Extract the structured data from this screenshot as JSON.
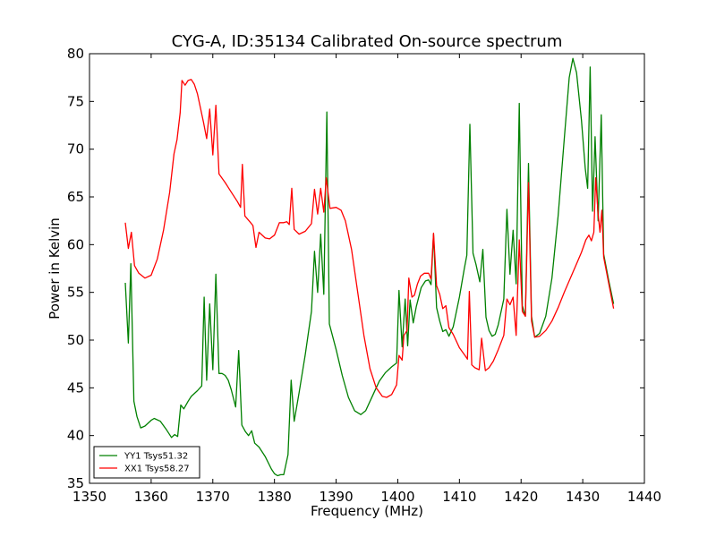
{
  "chart_data": {
    "type": "line",
    "title": "CYG-A, ID:35134 Calibrated On-source spectrum",
    "xlabel": "Frequency (MHz)",
    "ylabel": "Power in Kelvin",
    "xlim": [
      1350,
      1440
    ],
    "ylim": [
      35,
      80
    ],
    "xticks": [
      "1350",
      "1360",
      "1370",
      "1380",
      "1390",
      "1400",
      "1410",
      "1420",
      "1430",
      "1440"
    ],
    "yticks": [
      "35",
      "40",
      "45",
      "50",
      "55",
      "60",
      "65",
      "70",
      "75",
      "80"
    ],
    "grid": false,
    "legend_position": "lower-left",
    "series": [
      {
        "name": "YY1 Tsys51.32",
        "color": "#008000",
        "points": [
          [
            1355.8,
            56.0
          ],
          [
            1356.3,
            49.7
          ],
          [
            1356.7,
            58.0
          ],
          [
            1357.2,
            43.6
          ],
          [
            1357.7,
            42.0
          ],
          [
            1358.3,
            40.8
          ],
          [
            1359.0,
            41.0
          ],
          [
            1360.0,
            41.6
          ],
          [
            1360.5,
            41.8
          ],
          [
            1361.5,
            41.5
          ],
          [
            1362.5,
            40.6
          ],
          [
            1363.3,
            39.8
          ],
          [
            1363.8,
            40.1
          ],
          [
            1364.3,
            39.9
          ],
          [
            1364.8,
            43.2
          ],
          [
            1365.3,
            42.8
          ],
          [
            1366.0,
            43.6
          ],
          [
            1366.5,
            44.1
          ],
          [
            1367.5,
            44.7
          ],
          [
            1368.2,
            45.2
          ],
          [
            1368.6,
            54.5
          ],
          [
            1369.0,
            45.8
          ],
          [
            1369.5,
            53.8
          ],
          [
            1370.0,
            46.9
          ],
          [
            1370.5,
            56.9
          ],
          [
            1371.0,
            46.5
          ],
          [
            1371.5,
            46.5
          ],
          [
            1372.0,
            46.3
          ],
          [
            1372.5,
            45.8
          ],
          [
            1373.0,
            44.8
          ],
          [
            1373.7,
            43.0
          ],
          [
            1374.2,
            48.9
          ],
          [
            1374.7,
            41.1
          ],
          [
            1375.3,
            40.4
          ],
          [
            1375.8,
            40.0
          ],
          [
            1376.3,
            40.5
          ],
          [
            1376.8,
            39.2
          ],
          [
            1377.5,
            38.8
          ],
          [
            1378.5,
            37.8
          ],
          [
            1379.5,
            36.5
          ],
          [
            1380.0,
            36.0
          ],
          [
            1380.5,
            35.8
          ],
          [
            1381.0,
            35.9
          ],
          [
            1381.5,
            35.9
          ],
          [
            1382.2,
            38.0
          ],
          [
            1382.7,
            45.8
          ],
          [
            1383.2,
            41.5
          ],
          [
            1384.0,
            44.5
          ],
          [
            1385.0,
            48.5
          ],
          [
            1386.0,
            53.0
          ],
          [
            1386.5,
            59.3
          ],
          [
            1387.0,
            55.0
          ],
          [
            1387.5,
            61.1
          ],
          [
            1388.0,
            54.8
          ],
          [
            1388.5,
            73.9
          ],
          [
            1388.9,
            51.7
          ],
          [
            1390.0,
            49.0
          ],
          [
            1391.0,
            46.3
          ],
          [
            1392.0,
            44.0
          ],
          [
            1393.0,
            42.6
          ],
          [
            1394.0,
            42.2
          ],
          [
            1394.8,
            42.6
          ],
          [
            1396.0,
            44.3
          ],
          [
            1397.0,
            45.7
          ],
          [
            1398.0,
            46.6
          ],
          [
            1399.0,
            47.2
          ],
          [
            1399.8,
            47.6
          ],
          [
            1400.2,
            55.2
          ],
          [
            1400.7,
            49.3
          ],
          [
            1401.2,
            54.3
          ],
          [
            1401.6,
            49.4
          ],
          [
            1402.0,
            54.2
          ],
          [
            1402.5,
            51.8
          ],
          [
            1403.0,
            53.5
          ],
          [
            1403.8,
            55.5
          ],
          [
            1404.5,
            56.2
          ],
          [
            1405.0,
            56.3
          ],
          [
            1405.4,
            55.8
          ],
          [
            1405.8,
            61.1
          ],
          [
            1406.3,
            53.4
          ],
          [
            1406.8,
            52.0
          ],
          [
            1407.3,
            50.9
          ],
          [
            1407.8,
            51.1
          ],
          [
            1408.3,
            50.4
          ],
          [
            1409.0,
            51.4
          ],
          [
            1410.0,
            54.5
          ],
          [
            1410.8,
            57.5
          ],
          [
            1411.2,
            58.9
          ],
          [
            1411.7,
            72.6
          ],
          [
            1412.2,
            59.1
          ],
          [
            1412.7,
            57.9
          ],
          [
            1413.3,
            56.1
          ],
          [
            1413.8,
            59.5
          ],
          [
            1414.3,
            52.4
          ],
          [
            1414.8,
            51.0
          ],
          [
            1415.3,
            50.4
          ],
          [
            1415.8,
            50.6
          ],
          [
            1416.3,
            51.6
          ],
          [
            1417.2,
            54.3
          ],
          [
            1417.7,
            63.7
          ],
          [
            1418.2,
            56.9
          ],
          [
            1418.7,
            61.5
          ],
          [
            1419.2,
            55.9
          ],
          [
            1419.7,
            74.8
          ],
          [
            1420.2,
            53.6
          ],
          [
            1420.7,
            52.5
          ],
          [
            1421.2,
            68.5
          ],
          [
            1421.7,
            52.5
          ],
          [
            1422.2,
            50.3
          ],
          [
            1423.0,
            50.7
          ],
          [
            1424.0,
            52.5
          ],
          [
            1425.0,
            56.5
          ],
          [
            1426.0,
            63.0
          ],
          [
            1427.0,
            71.0
          ],
          [
            1427.8,
            77.5
          ],
          [
            1428.4,
            79.5
          ],
          [
            1429.0,
            78.0
          ],
          [
            1429.8,
            73.0
          ],
          [
            1430.4,
            68.0
          ],
          [
            1430.8,
            65.9
          ],
          [
            1431.2,
            78.6
          ],
          [
            1431.6,
            63.5
          ],
          [
            1432.0,
            71.3
          ],
          [
            1432.5,
            62.5
          ],
          [
            1433.0,
            73.6
          ],
          [
            1433.4,
            59.0
          ],
          [
            1434.2,
            56.3
          ],
          [
            1435.0,
            53.8
          ]
        ]
      },
      {
        "name": "XX1 Tsys58.27",
        "color": "#ff0000",
        "points": [
          [
            1355.8,
            62.3
          ],
          [
            1356.3,
            59.6
          ],
          [
            1356.8,
            61.3
          ],
          [
            1357.3,
            57.8
          ],
          [
            1358.0,
            57.0
          ],
          [
            1359.0,
            56.5
          ],
          [
            1360.0,
            56.8
          ],
          [
            1361.0,
            58.5
          ],
          [
            1362.0,
            61.5
          ],
          [
            1363.0,
            65.5
          ],
          [
            1363.7,
            69.5
          ],
          [
            1364.2,
            71.0
          ],
          [
            1364.7,
            73.8
          ],
          [
            1365.0,
            77.2
          ],
          [
            1365.5,
            76.7
          ],
          [
            1366.0,
            77.2
          ],
          [
            1366.5,
            77.3
          ],
          [
            1367.0,
            76.8
          ],
          [
            1367.5,
            75.8
          ],
          [
            1368.0,
            74.3
          ],
          [
            1368.5,
            72.8
          ],
          [
            1369.0,
            71.1
          ],
          [
            1369.5,
            74.2
          ],
          [
            1370.0,
            69.4
          ],
          [
            1370.5,
            74.6
          ],
          [
            1371.0,
            67.4
          ],
          [
            1372.0,
            66.5
          ],
          [
            1373.0,
            65.5
          ],
          [
            1374.0,
            64.5
          ],
          [
            1374.5,
            63.9
          ],
          [
            1374.8,
            68.4
          ],
          [
            1375.2,
            63.0
          ],
          [
            1376.0,
            62.4
          ],
          [
            1376.5,
            62.0
          ],
          [
            1377.0,
            59.7
          ],
          [
            1377.5,
            61.3
          ],
          [
            1378.5,
            60.7
          ],
          [
            1379.2,
            60.6
          ],
          [
            1380.0,
            61.0
          ],
          [
            1380.8,
            62.3
          ],
          [
            1381.5,
            62.3
          ],
          [
            1382.0,
            62.4
          ],
          [
            1382.4,
            62.1
          ],
          [
            1382.8,
            65.9
          ],
          [
            1383.2,
            61.6
          ],
          [
            1384.0,
            61.1
          ],
          [
            1385.0,
            61.4
          ],
          [
            1386.0,
            62.2
          ],
          [
            1386.5,
            65.8
          ],
          [
            1387.0,
            63.2
          ],
          [
            1387.5,
            65.9
          ],
          [
            1388.0,
            63.4
          ],
          [
            1388.4,
            67.0
          ],
          [
            1389.0,
            63.8
          ],
          [
            1390.0,
            63.9
          ],
          [
            1390.8,
            63.6
          ],
          [
            1391.5,
            62.5
          ],
          [
            1392.5,
            59.5
          ],
          [
            1393.5,
            55.0
          ],
          [
            1394.5,
            50.5
          ],
          [
            1395.5,
            47.0
          ],
          [
            1396.5,
            45.0
          ],
          [
            1397.5,
            44.1
          ],
          [
            1398.2,
            44.0
          ],
          [
            1399.0,
            44.3
          ],
          [
            1399.8,
            45.3
          ],
          [
            1400.2,
            48.4
          ],
          [
            1400.7,
            47.9
          ],
          [
            1401.0,
            50.5
          ],
          [
            1401.5,
            51.0
          ],
          [
            1401.8,
            56.5
          ],
          [
            1402.3,
            54.5
          ],
          [
            1402.7,
            54.7
          ],
          [
            1403.2,
            55.9
          ],
          [
            1403.7,
            56.7
          ],
          [
            1404.3,
            57.0
          ],
          [
            1405.0,
            57.0
          ],
          [
            1405.4,
            56.4
          ],
          [
            1405.8,
            61.2
          ],
          [
            1406.3,
            55.7
          ],
          [
            1406.8,
            54.8
          ],
          [
            1407.3,
            53.3
          ],
          [
            1407.8,
            53.6
          ],
          [
            1408.3,
            51.3
          ],
          [
            1409.0,
            50.6
          ],
          [
            1410.0,
            49.2
          ],
          [
            1411.0,
            48.3
          ],
          [
            1411.3,
            48.0
          ],
          [
            1411.6,
            55.1
          ],
          [
            1412.0,
            47.4
          ],
          [
            1412.5,
            47.1
          ],
          [
            1413.2,
            46.9
          ],
          [
            1413.6,
            50.2
          ],
          [
            1414.2,
            46.8
          ],
          [
            1414.8,
            47.1
          ],
          [
            1415.5,
            47.8
          ],
          [
            1416.3,
            49.0
          ],
          [
            1417.2,
            50.5
          ],
          [
            1417.7,
            54.3
          ],
          [
            1418.2,
            53.7
          ],
          [
            1418.7,
            54.5
          ],
          [
            1419.2,
            50.5
          ],
          [
            1419.7,
            60.5
          ],
          [
            1420.2,
            53.0
          ],
          [
            1420.7,
            52.5
          ],
          [
            1421.2,
            66.5
          ],
          [
            1421.7,
            52.0
          ],
          [
            1422.2,
            50.3
          ],
          [
            1423.0,
            50.4
          ],
          [
            1424.0,
            51.0
          ],
          [
            1425.0,
            52.0
          ],
          [
            1426.0,
            53.4
          ],
          [
            1427.0,
            55.0
          ],
          [
            1428.0,
            56.5
          ],
          [
            1429.0,
            58.0
          ],
          [
            1429.8,
            59.2
          ],
          [
            1430.5,
            60.5
          ],
          [
            1431.0,
            61.0
          ],
          [
            1431.4,
            60.4
          ],
          [
            1431.8,
            61.3
          ],
          [
            1432.1,
            67.0
          ],
          [
            1432.5,
            63.2
          ],
          [
            1432.8,
            61.3
          ],
          [
            1433.1,
            63.6
          ],
          [
            1433.4,
            58.7
          ],
          [
            1434.2,
            56.0
          ],
          [
            1435.0,
            53.3
          ]
        ]
      }
    ]
  }
}
